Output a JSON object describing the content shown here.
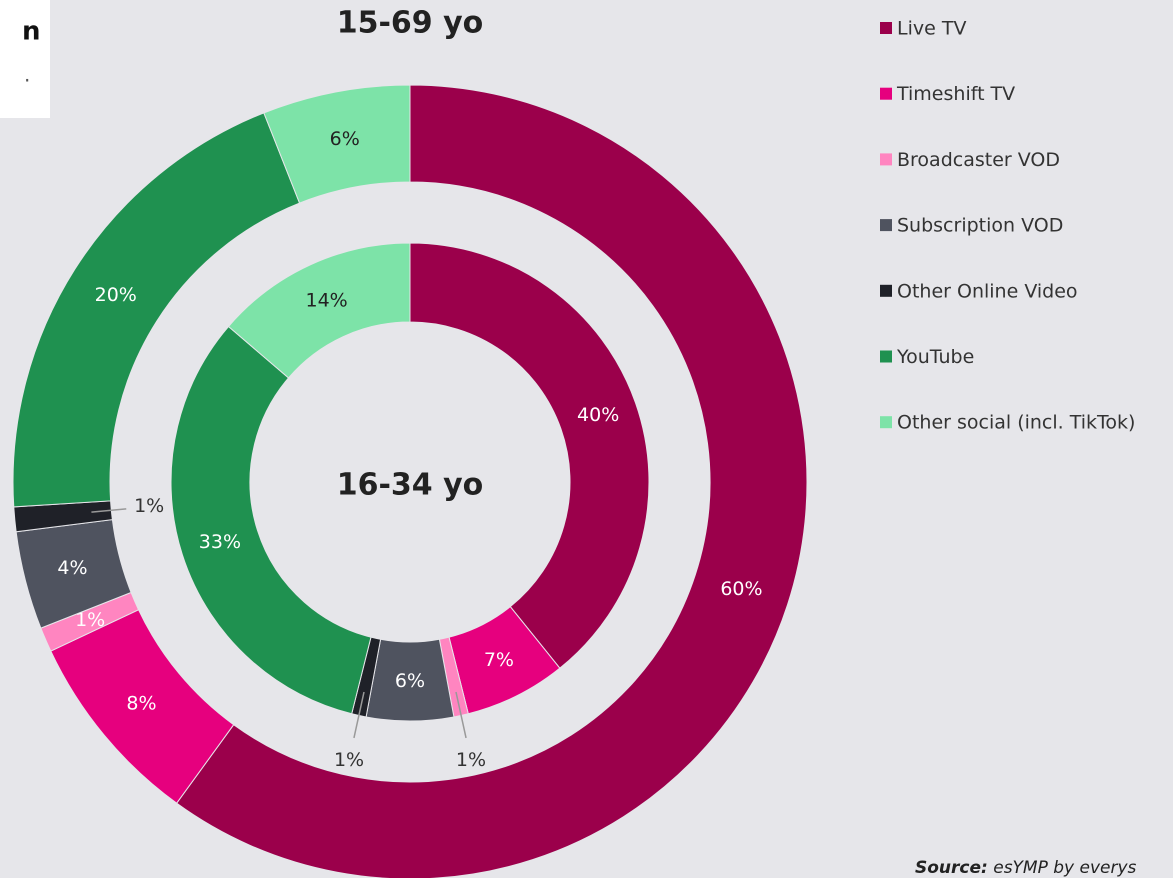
{
  "chart_data": {
    "type": "donut",
    "categories": [
      "Live TV",
      "Timeshift TV",
      "Broadcaster VOD",
      "Subscription VOD",
      "Other Online Video",
      "YouTube",
      "Other social (incl. TikTok)"
    ],
    "colors": [
      "#9b004b",
      "#e6007e",
      "#ff85c0",
      "#4f535f",
      "#1f2128",
      "#1f9150",
      "#7de3a8"
    ],
    "rings": [
      {
        "name": "15-69 yo",
        "values": [
          60,
          8,
          1,
          4,
          1,
          20,
          6
        ],
        "value_labels": [
          "60%",
          "8%",
          "1%",
          "4%",
          "1%",
          "20%",
          "6%"
        ]
      },
      {
        "name": "16-34 yo",
        "values": [
          40,
          7,
          1,
          6,
          1,
          33,
          14
        ],
        "value_labels": [
          "40%",
          "7%",
          "1%",
          "6%",
          "1%",
          "33%",
          "14%"
        ]
      }
    ],
    "clipped_text": [
      "n",
      "."
    ],
    "source": {
      "label": "Source:",
      "text": " esYMP by everys"
    }
  }
}
